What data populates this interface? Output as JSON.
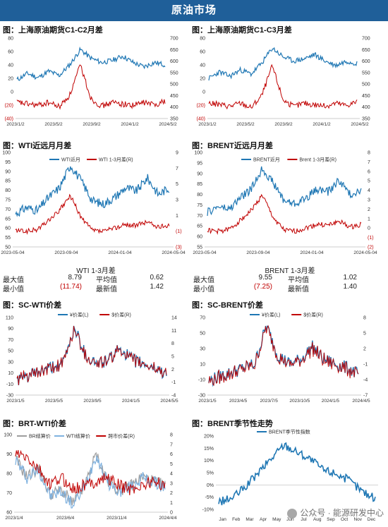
{
  "banner": "原油市场",
  "charts": {
    "c1": {
      "title": "图：上海原油期货C1-C2月差",
      "type": "line",
      "left_ticks": [
        "80",
        "60",
        "40",
        "20",
        "0",
        "(20)",
        "(40)"
      ],
      "right_ticks": [
        "700",
        "650",
        "600",
        "550",
        "500",
        "450",
        "400",
        "350"
      ],
      "x_ticks": [
        "2023/1/2",
        "2023/5/2",
        "2023/9/2",
        "2024/1/2",
        "2024/5/2"
      ]
    },
    "c2": {
      "title": "图：上海原油期货C1-C3月差",
      "type": "line",
      "left_ticks": [
        "80",
        "60",
        "40",
        "20",
        "0",
        "(20)",
        "(40)"
      ],
      "right_ticks": [
        "700",
        "650",
        "600",
        "550",
        "500",
        "450",
        "400",
        "350"
      ],
      "x_ticks": [
        "2023/1/2",
        "2023/5/2",
        "2023/9/2",
        "2024/1/2",
        "2024/5/2"
      ]
    },
    "c3": {
      "title": "图：WTI近远月月差",
      "type": "line",
      "legend": [
        "WTI近月",
        "WTI 1-3月差(R)"
      ],
      "left_ticks": [
        "100",
        "95",
        "90",
        "85",
        "80",
        "75",
        "70",
        "65",
        "60",
        "55",
        "50"
      ],
      "right_ticks": [
        "9",
        "7",
        "5",
        "3",
        "1",
        "(1)",
        "(3)"
      ],
      "x_ticks": [
        "2023-05-04",
        "2023-09-04",
        "2024-01-04",
        "2024-05-04"
      ]
    },
    "c4": {
      "title": "图：BRENT近远月月差",
      "type": "line",
      "legend": [
        "BRENT近月",
        "Brent 1-3月差(R)"
      ],
      "left_ticks": [
        "100",
        "95",
        "90",
        "85",
        "80",
        "75",
        "70",
        "65",
        "60",
        "55"
      ],
      "right_ticks": [
        "8",
        "7",
        "6",
        "5",
        "4",
        "3",
        "2",
        "1",
        "0",
        "(1)",
        "(2)"
      ],
      "x_ticks": [
        "2023-05-04",
        "2023-09-04",
        "2024-01-04",
        "2024-05-04"
      ]
    },
    "c5": {
      "title": "图：SC-WTI价差",
      "type": "line",
      "legend": [
        "¥价差(L)",
        "$价差(R)"
      ],
      "left_ticks": [
        "110",
        "90",
        "70",
        "50",
        "30",
        "10",
        "-10",
        "-30"
      ],
      "right_ticks": [
        "14",
        "11",
        "8",
        "5",
        "2",
        "-1",
        "-4"
      ],
      "x_ticks": [
        "2023/1/5",
        "2023/5/5",
        "2023/9/5",
        "2024/1/5",
        "2024/5/5"
      ]
    },
    "c6": {
      "title": "图：SC-BRENT价差",
      "type": "line",
      "legend": [
        "¥价差(L)",
        "$价差(R)"
      ],
      "left_ticks": [
        "70",
        "50",
        "30",
        "10",
        "-10",
        "-30"
      ],
      "right_ticks": [
        "8",
        "5",
        "2",
        "-1",
        "-4",
        "-7"
      ],
      "x_ticks": [
        "2023/1/5",
        "2023/4/5",
        "2023/7/5",
        "2023/10/5",
        "2024/1/5",
        "2024/4/5"
      ]
    },
    "c7": {
      "title": "图：BRT-WTI价差",
      "type": "line",
      "legend": [
        "BR结算价",
        "WTI结算价",
        "跨市价差(R)"
      ],
      "left_ticks": [
        "100",
        "90",
        "80",
        "70",
        "60"
      ],
      "right_ticks": [
        "8",
        "7",
        "6",
        "5",
        "4",
        "3",
        "2",
        "1",
        "0"
      ],
      "x_ticks": [
        "2023/1/4",
        "2023/6/4",
        "2023/11/4",
        "2024/4/4"
      ]
    },
    "c8": {
      "title": "图：BRENT季节性走势",
      "type": "line",
      "legend": [
        "BRENT季节性指数"
      ],
      "left_ticks": [
        "20%",
        "15%",
        "10%",
        "5%",
        "0%",
        "-5%",
        "-10%"
      ],
      "x_ticks": [
        "Jan",
        "Feb",
        "Mar",
        "Apr",
        "May",
        "Jun",
        "Jul",
        "Aug",
        "Sep",
        "Oct",
        "Nov",
        "Dec"
      ]
    }
  },
  "stats": {
    "wti": {
      "title": "WTI 1-3月差",
      "max_label": "最大值",
      "max": "8.79",
      "avg_label": "平均值",
      "avg": "0.62",
      "min_label": "最小值",
      "min": "(11.74)",
      "latest_label": "最新值",
      "latest": "1.42"
    },
    "brent": {
      "title": "BRENT 1-3月差",
      "max_label": "最大值",
      "max": "9.55",
      "avg_label": "平均值",
      "avg": "1.02",
      "min_label": "最小值",
      "min": "(7.25)",
      "latest_label": "最新值",
      "latest": "1.40"
    }
  },
  "watermark": "公众号 · 能源研发中心",
  "colors": {
    "blue": "#1f77b4",
    "red": "#c00000",
    "gray": "#9e9e9e",
    "lightblue": "#7fb2e0",
    "banner": "#1f5f99"
  }
}
